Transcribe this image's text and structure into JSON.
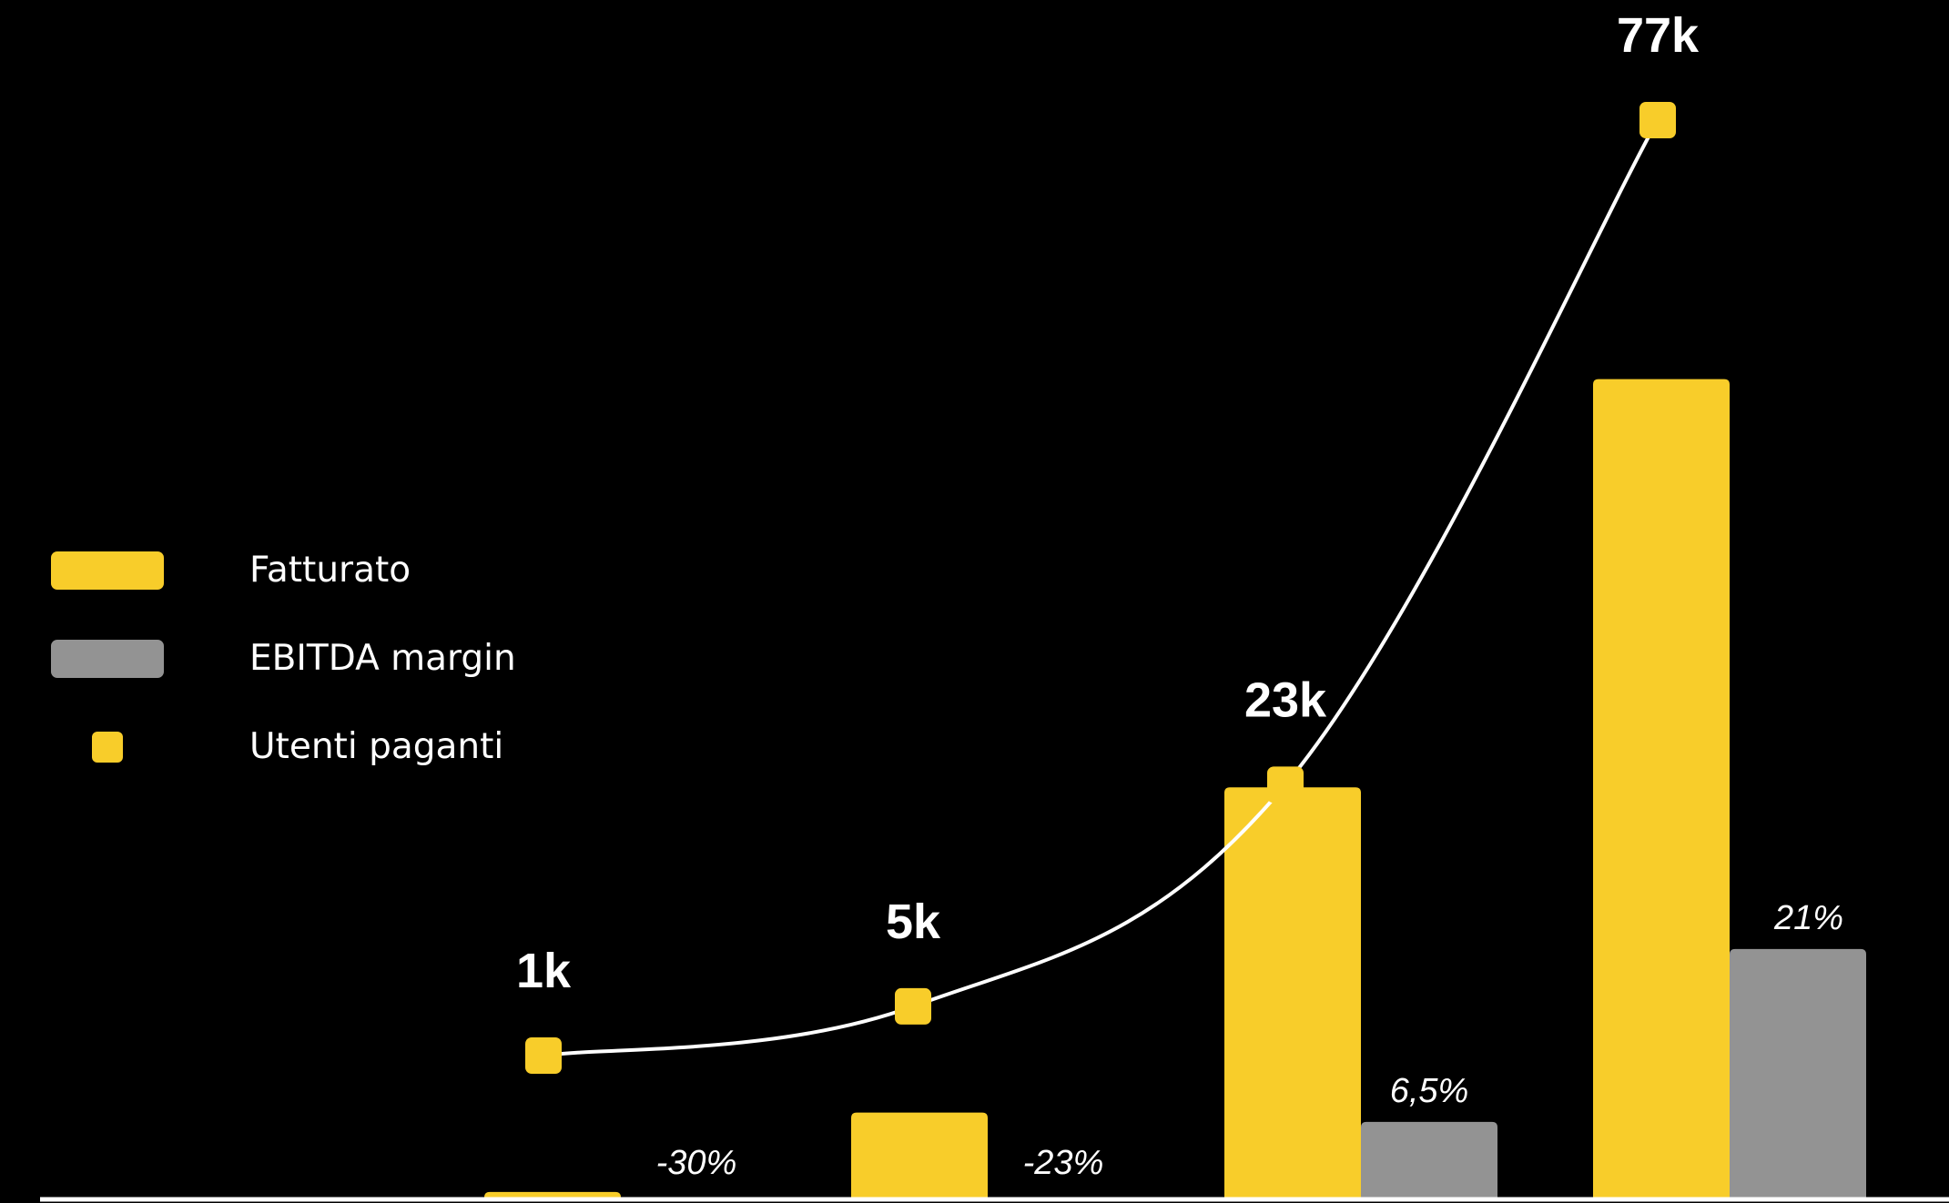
{
  "chart_data": {
    "type": "bar",
    "title": "",
    "xlabel": "",
    "ylabel": "",
    "categories": [
      "",
      "",
      "",
      ""
    ],
    "series": [
      {
        "name": "Fatturato",
        "type": "bar",
        "color": "#F8CD2A",
        "values": [
          0.4,
          4.7,
          22.3,
          44.4
        ]
      },
      {
        "name": "EBITDA margin",
        "type": "bar",
        "color": "#939393",
        "values": [
          -30,
          -23,
          6.5,
          21
        ],
        "labels": [
          "-30%",
          "-23%",
          "6,5%",
          "21%"
        ]
      },
      {
        "name": "Utenti paganti",
        "type": "line",
        "color": "#F8CD2A",
        "line_color": "#FFFFFF",
        "values": [
          1,
          5,
          23,
          77
        ],
        "labels": [
          "1k",
          "5k",
          "23k",
          "77k"
        ]
      }
    ],
    "legend_position": "left",
    "grid": false,
    "baseline_color": "#FFFFFF"
  }
}
